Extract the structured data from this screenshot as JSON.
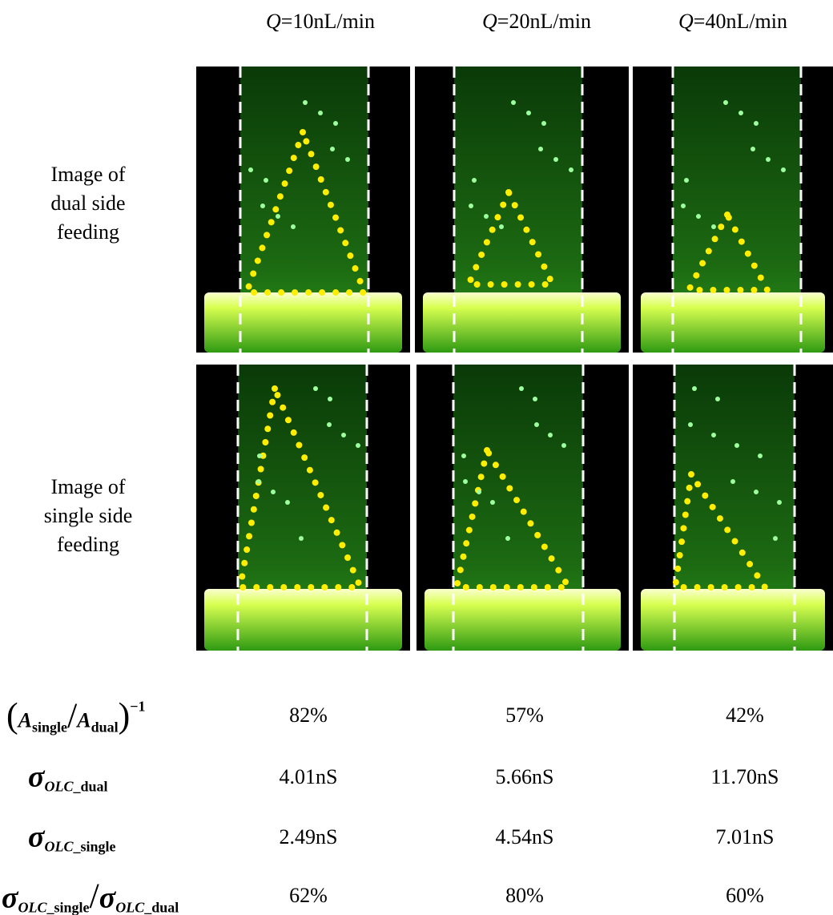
{
  "column_headers": [
    {
      "symbol": "Q",
      "text": "=10nL/min"
    },
    {
      "symbol": "Q",
      "text": "=20nL/min"
    },
    {
      "symbol": "Q",
      "text": "=40nL/min"
    }
  ],
  "row_labels": [
    [
      "Image of",
      "dual side",
      "feeding"
    ],
    [
      "Image of",
      "single side",
      "feeding"
    ]
  ],
  "table": {
    "rows": [
      {
        "label": [
          "(",
          "A",
          "single",
          "/",
          "A",
          "dual",
          ")",
          "−1"
        ],
        "values": [
          "82%",
          "57%",
          "42%"
        ]
      },
      {
        "label": [
          "σ",
          "OLC",
          "_dual"
        ],
        "values": [
          "4.01nS",
          "5.66nS",
          "11.70nS"
        ]
      },
      {
        "label": [
          "σ",
          "OLC",
          "_single"
        ],
        "values": [
          "2.49nS",
          "4.54nS",
          "7.01nS"
        ]
      },
      {
        "label": [
          "σ",
          "OLC",
          "_single",
          "/",
          "σ",
          "OLC",
          "_dual"
        ],
        "values": [
          "62%",
          "80%",
          "60%"
        ]
      }
    ]
  }
}
